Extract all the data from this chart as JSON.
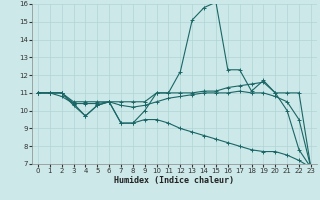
{
  "xlabel": "Humidex (Indice chaleur)",
  "bg_color": "#cce8e8",
  "grid_color": "#b0d4d4",
  "line_color": "#1a6666",
  "xlim": [
    -0.5,
    23.5
  ],
  "ylim": [
    7,
    16
  ],
  "yticks": [
    7,
    8,
    9,
    10,
    11,
    12,
    13,
    14,
    15,
    16
  ],
  "xticks": [
    0,
    1,
    2,
    3,
    4,
    5,
    6,
    7,
    8,
    9,
    10,
    11,
    12,
    13,
    14,
    15,
    16,
    17,
    18,
    19,
    20,
    21,
    22,
    23
  ],
  "series": [
    [
      11.0,
      11.0,
      11.0,
      10.3,
      9.7,
      10.3,
      10.5,
      9.3,
      9.3,
      10.0,
      11.0,
      11.0,
      12.2,
      15.1,
      15.8,
      16.1,
      12.3,
      12.3,
      11.1,
      11.7,
      11.0,
      10.0,
      7.8,
      6.8
    ],
    [
      11.0,
      11.0,
      11.0,
      10.5,
      10.5,
      10.5,
      10.5,
      10.5,
      10.5,
      10.5,
      11.0,
      11.0,
      11.0,
      11.0,
      11.1,
      11.1,
      11.3,
      11.4,
      11.5,
      11.6,
      11.0,
      11.0,
      11.0,
      6.8
    ],
    [
      11.0,
      11.0,
      10.8,
      10.4,
      10.4,
      10.4,
      10.5,
      10.3,
      10.2,
      10.3,
      10.5,
      10.7,
      10.8,
      10.9,
      11.0,
      11.0,
      11.0,
      11.1,
      11.0,
      11.0,
      10.8,
      10.5,
      9.5,
      6.8
    ],
    [
      11.0,
      11.0,
      11.0,
      10.4,
      9.7,
      10.3,
      10.5,
      9.3,
      9.3,
      9.5,
      9.5,
      9.3,
      9.0,
      8.8,
      8.6,
      8.4,
      8.2,
      8.0,
      7.8,
      7.7,
      7.7,
      7.5,
      7.2,
      6.8
    ]
  ]
}
